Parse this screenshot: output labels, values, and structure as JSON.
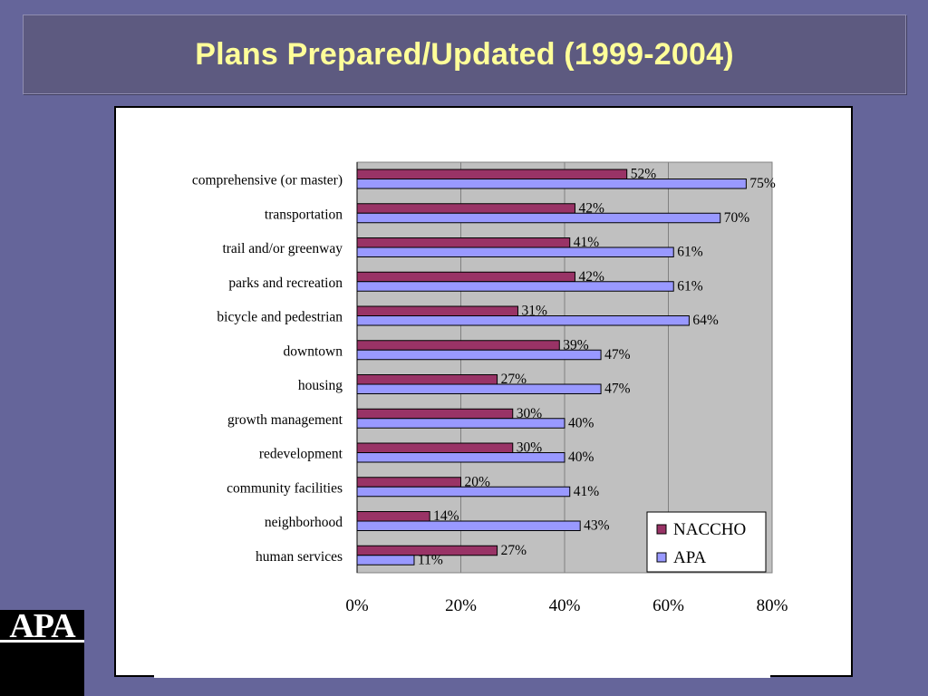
{
  "slide": {
    "title": "Plans Prepared/Updated (1999-2004)"
  },
  "logo": {
    "text": "APA"
  },
  "chart_data": {
    "type": "bar",
    "orientation": "horizontal",
    "categories": [
      "comprehensive (or master)",
      "transportation",
      "trail and/or greenway",
      "parks and recreation",
      "bicycle and pedestrian",
      "downtown",
      "housing",
      "growth management",
      "redevelopment",
      "community facilities",
      "neighborhood",
      "human services"
    ],
    "series": [
      {
        "name": "NACCHO",
        "color": "#993366",
        "values": [
          52,
          42,
          41,
          42,
          31,
          39,
          27,
          30,
          30,
          20,
          14,
          27
        ]
      },
      {
        "name": "APA",
        "color": "#9999ff",
        "values": [
          75,
          70,
          61,
          61,
          64,
          47,
          47,
          40,
          40,
          41,
          43,
          11
        ]
      }
    ],
    "data_labels": {
      "NACCHO": [
        "52%",
        "42%",
        "41%",
        "42%",
        "31%",
        "39%",
        "27%",
        "30%",
        "30%",
        "20%",
        "14%",
        "27%"
      ],
      "APA": [
        "75%",
        "70%",
        "61%",
        "61%",
        "64%",
        "47%",
        "47%",
        "40%",
        "40%",
        "41%",
        "43%",
        "11%"
      ]
    },
    "x_ticks": [
      "0%",
      "20%",
      "40%",
      "60%",
      "80%"
    ],
    "xlim": [
      0,
      80
    ],
    "x_tick_values": [
      0,
      20,
      40,
      60,
      80
    ],
    "plot_background": "#c0c0c0",
    "grid": true,
    "legend_position": "bottom-right",
    "title": "",
    "xlabel": "",
    "ylabel": ""
  }
}
